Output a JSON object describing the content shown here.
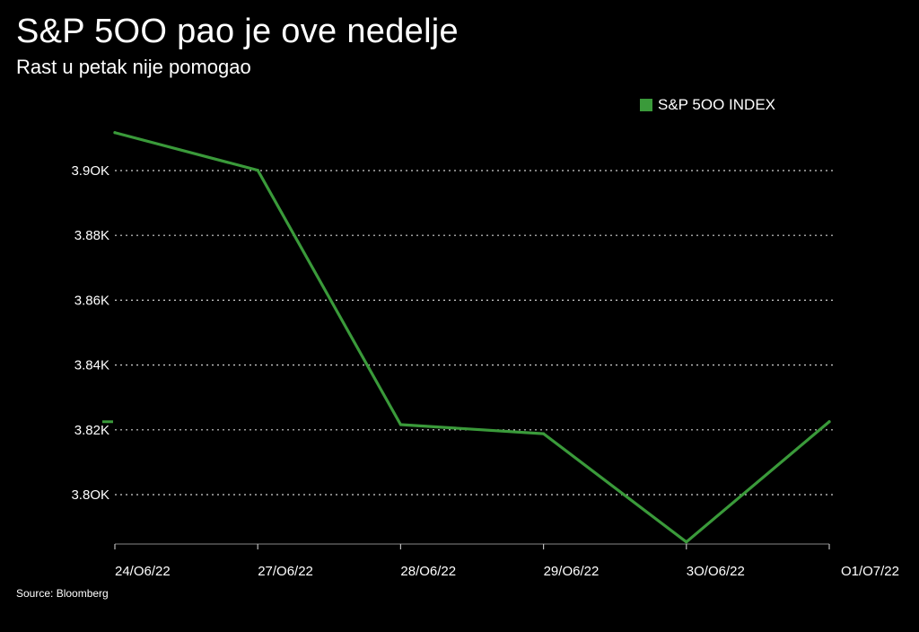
{
  "title": "S&P 5OO pao je ove nedelje",
  "subtitle": "Rast u petak nije pomogao",
  "source": "Source: Bloomberg",
  "colors": {
    "background": "#000000",
    "line": "#3a9a3a",
    "text": "#ffffff",
    "grid": "#cfcfcf"
  },
  "chart_data": {
    "type": "line",
    "legend_position": "top-right",
    "grid": "horizontal-dotted",
    "categories": [
      "24/O6/22",
      "27/O6/22",
      "28/O6/22",
      "29/O6/22",
      "3O/O6/22",
      "O1/O7/22"
    ],
    "series": [
      {
        "name": "S&P 5OO INDEX",
        "values": [
          3911.7,
          3900.1,
          3821.6,
          3818.8,
          3785.4,
          3822.5
        ]
      }
    ],
    "y_ticks": [
      3800,
      3820,
      3840,
      3860,
      3880,
      3900
    ],
    "y_tick_labels": [
      "3.8OK",
      "3.82K",
      "3.84K",
      "3.86K",
      "3.88K",
      "3.9OK"
    ],
    "ylim": [
      3785,
      3912
    ],
    "last_value_marker": 3822.5
  }
}
